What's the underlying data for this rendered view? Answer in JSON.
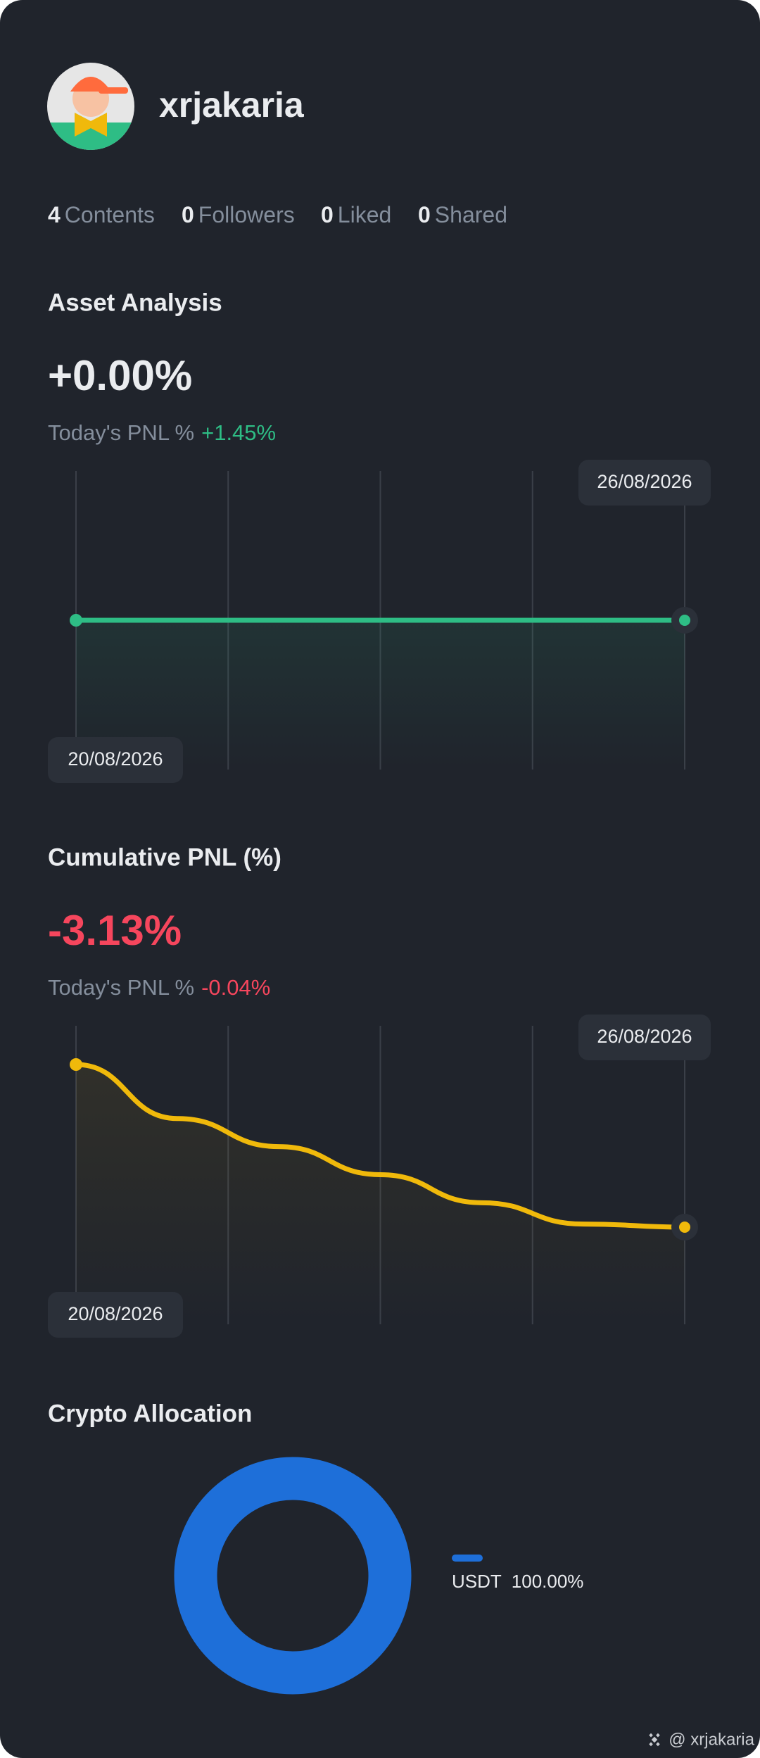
{
  "profile": {
    "username": "xrjakaria",
    "stats": [
      {
        "value": 4,
        "label": "Contents"
      },
      {
        "value": 0,
        "label": "Followers"
      },
      {
        "value": 0,
        "label": "Liked"
      },
      {
        "value": 0,
        "label": "Shared"
      }
    ]
  },
  "asset_analysis": {
    "title": "Asset Analysis",
    "value": "+0.00%",
    "today_label": "Today's PNL %",
    "today_value": "+1.45%",
    "today_color": "#2ebd85",
    "start_date": "20/08/2026",
    "end_date": "26/08/2026",
    "color": "#2ebd85",
    "values": [
      0,
      0,
      0,
      0,
      0,
      0,
      0
    ]
  },
  "cumulative_pnl": {
    "title": "Cumulative PNL (%)",
    "value": "-3.13%",
    "today_label": "Today's PNL %",
    "today_value": "-0.04%",
    "today_color": "#f6465d",
    "start_date": "20/08/2026",
    "end_date": "26/08/2026",
    "color": "#f0b90b",
    "values": [
      0,
      -1.04,
      -1.58,
      -2.12,
      -2.66,
      -3.07,
      -3.13
    ]
  },
  "crypto_allocation": {
    "title": "Crypto Allocation",
    "names": [
      "USDT"
    ],
    "values": [
      100
    ],
    "value_labels": [
      "100.00%"
    ],
    "colors": [
      "#1e6fd9"
    ]
  },
  "footer": "@ xrjakaria"
}
